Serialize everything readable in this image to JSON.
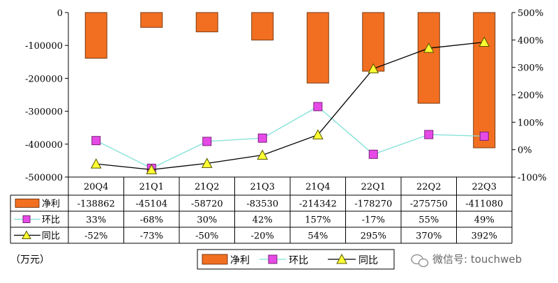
{
  "colors": {
    "bar": "#f26f21",
    "bar_stroke": "#7a3a10",
    "qoq_line": "#7fe0d6",
    "qoq_marker": "#e64ae6",
    "yoy_line": "#000000",
    "yoy_marker": "#ffff33",
    "grid_frame": "#000000"
  },
  "unit_label": "（万元）",
  "watermark": "微信号: touchweb",
  "watermark_icon": "wechat-icon",
  "chart_data": {
    "type": "bar",
    "categories": [
      "20Q4",
      "21Q1",
      "21Q2",
      "21Q3",
      "21Q4",
      "22Q1",
      "22Q2",
      "22Q3"
    ],
    "left_axis": {
      "ylim": [
        -500000,
        0
      ],
      "ticks": [
        0,
        -100000,
        -200000,
        -300000,
        -400000,
        -500000
      ],
      "tick_labels": [
        "0",
        "-100000",
        "-200000",
        "-300000",
        "-400000",
        "-500000"
      ]
    },
    "right_axis": {
      "ylim": [
        -100,
        500
      ],
      "ticks": [
        500,
        400,
        300,
        200,
        100,
        0,
        -100
      ],
      "tick_labels": [
        "500%",
        "400%",
        "300%",
        "200%",
        "100%",
        "0%",
        "-100%"
      ]
    },
    "series": [
      {
        "name": "净利",
        "type": "bar",
        "axis": "left",
        "values": [
          -138862,
          -45104,
          -58720,
          -83530,
          -214342,
          -178270,
          -275750,
          -411080
        ],
        "labels": [
          "-138862",
          "-45104",
          "-58720",
          "-83530",
          "-214342",
          "-178270",
          "-275750",
          "-411080"
        ]
      },
      {
        "name": "环比",
        "type": "line",
        "axis": "right",
        "values": [
          33,
          -68,
          30,
          42,
          157,
          -17,
          55,
          49
        ],
        "labels": [
          "33%",
          "-68%",
          "30%",
          "42%",
          "157%",
          "-17%",
          "55%",
          "49%"
        ]
      },
      {
        "name": "同比",
        "type": "line",
        "axis": "right",
        "values": [
          -52,
          -73,
          -50,
          -20,
          54,
          295,
          370,
          392
        ],
        "labels": [
          "-52%",
          "-73%",
          "-50%",
          "-20%",
          "54%",
          "295%",
          "370%",
          "392%"
        ]
      }
    ],
    "legend": {
      "placement": "bottom",
      "items": [
        "净利",
        "环比",
        "同比"
      ]
    },
    "data_table": true
  }
}
